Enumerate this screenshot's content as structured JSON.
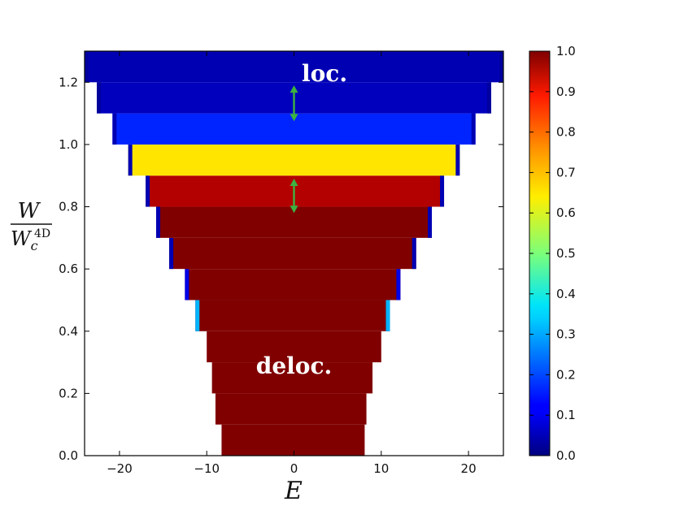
{
  "chart_data": {
    "type": "heatmap",
    "xlabel": "E",
    "ylabel": {
      "numerator": "W",
      "denominator": "W",
      "denominator_sub": "c",
      "denominator_sup": "4D"
    },
    "xlim": [
      -24,
      24
    ],
    "ylim": [
      0,
      1.3
    ],
    "x_ticks": [
      -20,
      -10,
      0,
      10,
      20
    ],
    "x_tick_labels": [
      "−20",
      "−10",
      "0",
      "10",
      "20"
    ],
    "y_ticks": [
      0.0,
      0.2,
      0.4,
      0.6,
      0.8,
      1.0,
      1.2
    ],
    "y_tick_labels": [
      "0.0",
      "0.2",
      "0.4",
      "0.6",
      "0.8",
      "1.0",
      "1.2"
    ],
    "colorbar": {
      "colormap": "jet",
      "range": [
        0,
        1
      ],
      "ticks": [
        0.0,
        0.1,
        0.2,
        0.3,
        0.4,
        0.5,
        0.6,
        0.7,
        0.8,
        0.9,
        1.0
      ],
      "tick_labels": [
        "0.0",
        "0.1",
        "0.2",
        "0.3",
        "0.4",
        "0.5",
        "0.6",
        "0.7",
        "0.8",
        "0.9",
        "1.0"
      ]
    },
    "bands": [
      {
        "w0": 0.0,
        "w1": 0.1,
        "e_min": -8.3,
        "e_max": 8.1,
        "value": 1.0,
        "edge_value": 1.0
      },
      {
        "w0": 0.1,
        "w1": 0.2,
        "e_min": -9.0,
        "e_max": 8.3,
        "value": 1.0,
        "edge_value": 1.0
      },
      {
        "w0": 0.2,
        "w1": 0.3,
        "e_min": -9.4,
        "e_max": 9.0,
        "value": 1.0,
        "edge_value": 1.0
      },
      {
        "w0": 0.3,
        "w1": 0.4,
        "e_min": -10.0,
        "e_max": 10.0,
        "value": 1.0,
        "edge_value": 1.0
      },
      {
        "w0": 0.4,
        "w1": 0.5,
        "e_min": -11.3,
        "e_max": 11.0,
        "value": 1.0,
        "edge_value": 0.3
      },
      {
        "w0": 0.5,
        "w1": 0.6,
        "e_min": -12.5,
        "e_max": 12.2,
        "value": 1.0,
        "edge_value": 0.1
      },
      {
        "w0": 0.6,
        "w1": 0.7,
        "e_min": -14.3,
        "e_max": 14.0,
        "value": 1.0,
        "edge_value": 0.05
      },
      {
        "w0": 0.7,
        "w1": 0.8,
        "e_min": -15.8,
        "e_max": 15.8,
        "value": 1.0,
        "edge_value": 0.05
      },
      {
        "w0": 0.8,
        "w1": 0.9,
        "e_min": -17.0,
        "e_max": 17.2,
        "value": 0.95,
        "edge_value": 0.05
      },
      {
        "w0": 0.9,
        "w1": 1.0,
        "e_min": -19.0,
        "e_max": 19.0,
        "value": 0.65,
        "edge_value": 0.05
      },
      {
        "w0": 1.0,
        "w1": 1.1,
        "e_min": -20.8,
        "e_max": 20.8,
        "value": 0.16,
        "edge_value": 0.05
      },
      {
        "w0": 1.1,
        "w1": 1.2,
        "e_min": -22.6,
        "e_max": 22.6,
        "value": 0.06,
        "edge_value": 0.03
      },
      {
        "w0": 1.2,
        "w1": 1.3,
        "e_min": -24.0,
        "e_max": 24.0,
        "value": 0.05,
        "edge_value": 0.03
      }
    ],
    "annotations": [
      {
        "text": "loc.",
        "x": 3.5,
        "y": 1.23
      },
      {
        "text": "deloc.",
        "x": 0.0,
        "y": 0.29
      }
    ],
    "arrows": [
      {
        "x": 0.0,
        "y0": 1.075,
        "y1": 1.19,
        "color": "#3cb340"
      },
      {
        "x": 0.0,
        "y0": 0.78,
        "y1": 0.89,
        "color": "#3cb340"
      }
    ]
  }
}
